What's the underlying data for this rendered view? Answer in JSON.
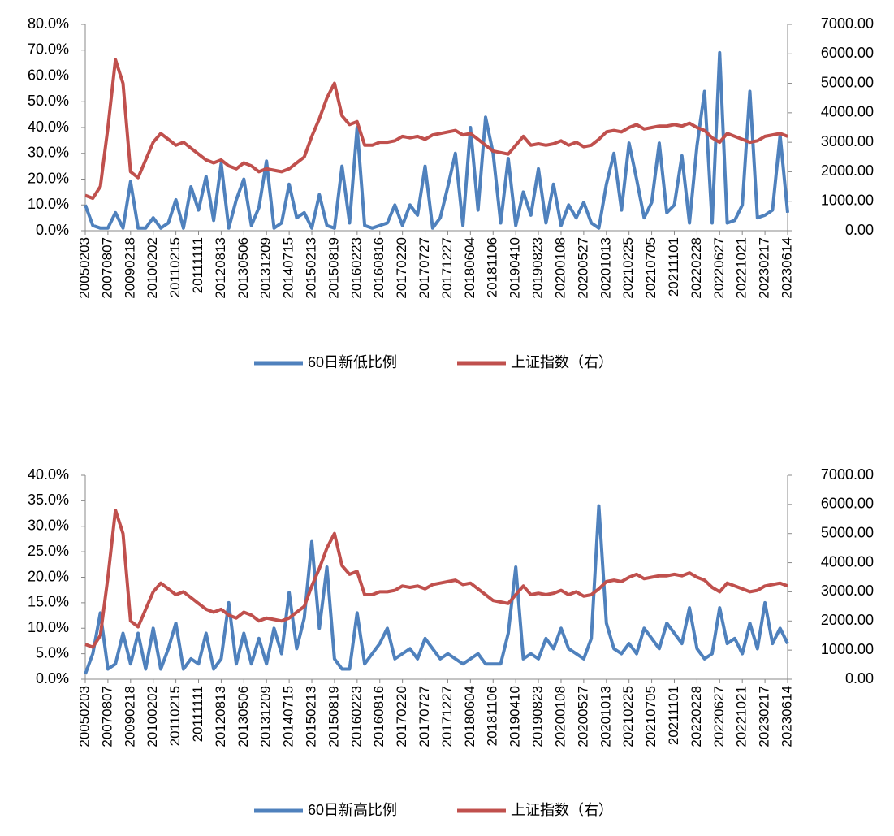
{
  "chart_data": [
    {
      "type": "line",
      "categories": [
        "20050203",
        null,
        null,
        "20070807",
        null,
        null,
        "20090218",
        null,
        null,
        "20100202",
        null,
        null,
        "20110215",
        null,
        null,
        "20111111",
        null,
        null,
        "20120813",
        null,
        null,
        "20130506",
        null,
        null,
        "20131209",
        null,
        null,
        "20140715",
        null,
        null,
        "20150213",
        null,
        null,
        "20150819",
        null,
        null,
        "20160223",
        null,
        null,
        "20160816",
        null,
        null,
        "20170220",
        null,
        null,
        "20170727",
        null,
        null,
        "20171227",
        null,
        null,
        "20180604",
        null,
        null,
        "20181106",
        null,
        null,
        "20190410",
        null,
        null,
        "20190823",
        null,
        null,
        "20200108",
        null,
        null,
        "20200527",
        null,
        null,
        "20201013",
        null,
        null,
        "20210225",
        null,
        null,
        "20210705",
        null,
        null,
        "20211101",
        null,
        null,
        "20220228",
        null,
        null,
        "20220627",
        null,
        null,
        "20221021",
        null,
        null,
        "20230217",
        null,
        null,
        "20230614"
      ],
      "series": [
        {
          "name": "60日新低比例",
          "color": "#4f81bd",
          "values": [
            10,
            2,
            1,
            1,
            7,
            1,
            19,
            1,
            1,
            5,
            1,
            3,
            12,
            1,
            17,
            8,
            21,
            4,
            26,
            1,
            12,
            20,
            2,
            9,
            27,
            1,
            3,
            18,
            5,
            7,
            1,
            14,
            2,
            1,
            25,
            3,
            40,
            2,
            1,
            2,
            3,
            10,
            2,
            10,
            6,
            25,
            1,
            5,
            17,
            30,
            2,
            40,
            8,
            44,
            30,
            3,
            28,
            2,
            15,
            6,
            24,
            3,
            18,
            2,
            10,
            5,
            11,
            3,
            1,
            18,
            30,
            8,
            34,
            20,
            5,
            11,
            34,
            7,
            10,
            29,
            3,
            33,
            54,
            3,
            69,
            3,
            4,
            10,
            54,
            5,
            6,
            8,
            37,
            7
          ]
        },
        {
          "name": "上证指数（右）",
          "color": "#c0504d",
          "axis": "y2",
          "values": [
            1200,
            1100,
            1500,
            3500,
            5800,
            5000,
            2000,
            1800,
            2400,
            3000,
            3300,
            3100,
            2900,
            3000,
            2800,
            2600,
            2400,
            2300,
            2400,
            2200,
            2100,
            2300,
            2200,
            2000,
            2100,
            2050,
            2000,
            2100,
            2300,
            2500,
            3200,
            3800,
            4500,
            5000,
            3900,
            3600,
            3700,
            2900,
            2900,
            3000,
            3000,
            3050,
            3200,
            3150,
            3200,
            3100,
            3250,
            3300,
            3350,
            3400,
            3250,
            3300,
            3100,
            2900,
            2700,
            2650,
            2600,
            2900,
            3200,
            2900,
            2950,
            2900,
            2950,
            3050,
            2900,
            3000,
            2850,
            2900,
            3100,
            3350,
            3400,
            3350,
            3500,
            3600,
            3450,
            3500,
            3550,
            3550,
            3600,
            3550,
            3650,
            3500,
            3400,
            3150,
            3000,
            3300,
            3200,
            3100,
            3000,
            3050,
            3200,
            3250,
            3300,
            3200
          ]
        }
      ],
      "ylim": [
        0,
        80
      ],
      "yticks": [
        {
          "value": 0,
          "label": "0.0%"
        },
        {
          "value": 10,
          "label": "10.0%"
        },
        {
          "value": 20,
          "label": "20.0%"
        },
        {
          "value": 30,
          "label": "30.0%"
        },
        {
          "value": 40,
          "label": "40.0%"
        },
        {
          "value": 50,
          "label": "50.0%"
        },
        {
          "value": 60,
          "label": "60.0%"
        },
        {
          "value": 70,
          "label": "70.0%"
        },
        {
          "value": 80,
          "label": "80.0%"
        }
      ],
      "y2lim": [
        0,
        7000
      ],
      "y2ticks": [
        {
          "value": 0,
          "label": "0.00"
        },
        {
          "value": 1000,
          "label": "1000.00"
        },
        {
          "value": 2000,
          "label": "2000.00"
        },
        {
          "value": 3000,
          "label": "3000.00"
        },
        {
          "value": 4000,
          "label": "4000.00"
        },
        {
          "value": 5000,
          "label": "5000.00"
        },
        {
          "value": 6000,
          "label": "6000.00"
        },
        {
          "value": 7000,
          "label": "7000.00"
        }
      ],
      "legend": "bottom"
    },
    {
      "type": "line",
      "categories": [
        "20050203",
        null,
        null,
        "20070807",
        null,
        null,
        "20090218",
        null,
        null,
        "20100202",
        null,
        null,
        "20110215",
        null,
        null,
        "20111111",
        null,
        null,
        "20120813",
        null,
        null,
        "20130506",
        null,
        null,
        "20131209",
        null,
        null,
        "20140715",
        null,
        null,
        "20150213",
        null,
        null,
        "20150819",
        null,
        null,
        "20160223",
        null,
        null,
        "20160816",
        null,
        null,
        "20170220",
        null,
        null,
        "20170727",
        null,
        null,
        "20171227",
        null,
        null,
        "20180604",
        null,
        null,
        "20181106",
        null,
        null,
        "20190410",
        null,
        null,
        "20190823",
        null,
        null,
        "20200108",
        null,
        null,
        "20200527",
        null,
        null,
        "20201013",
        null,
        null,
        "20210225",
        null,
        null,
        "20210705",
        null,
        null,
        "20211101",
        null,
        null,
        "20220228",
        null,
        null,
        "20220627",
        null,
        null,
        "20221021",
        null,
        null,
        "20230217",
        null,
        null,
        "20230614"
      ],
      "series": [
        {
          "name": "60日新高比例",
          "color": "#4f81bd",
          "values": [
            1,
            5,
            13,
            2,
            3,
            9,
            3,
            9,
            2,
            10,
            2,
            6,
            11,
            2,
            4,
            3,
            9,
            2,
            4,
            15,
            3,
            9,
            3,
            8,
            3,
            10,
            5,
            17,
            6,
            12,
            27,
            10,
            22,
            4,
            2,
            2,
            13,
            3,
            5,
            7,
            10,
            4,
            5,
            6,
            4,
            8,
            6,
            4,
            5,
            4,
            3,
            4,
            5,
            3,
            3,
            3,
            9,
            22,
            4,
            5,
            4,
            8,
            6,
            10,
            6,
            5,
            4,
            8,
            34,
            11,
            6,
            5,
            7,
            5,
            10,
            8,
            6,
            11,
            9,
            7,
            14,
            6,
            4,
            5,
            14,
            7,
            8,
            5,
            11,
            6,
            15,
            7,
            10,
            7
          ]
        },
        {
          "name": "上证指数（右）",
          "color": "#c0504d",
          "axis": "y2",
          "values": [
            1200,
            1100,
            1500,
            3500,
            5800,
            5000,
            2000,
            1800,
            2400,
            3000,
            3300,
            3100,
            2900,
            3000,
            2800,
            2600,
            2400,
            2300,
            2400,
            2200,
            2100,
            2300,
            2200,
            2000,
            2100,
            2050,
            2000,
            2100,
            2300,
            2500,
            3200,
            3800,
            4500,
            5000,
            3900,
            3600,
            3700,
            2900,
            2900,
            3000,
            3000,
            3050,
            3200,
            3150,
            3200,
            3100,
            3250,
            3300,
            3350,
            3400,
            3250,
            3300,
            3100,
            2900,
            2700,
            2650,
            2600,
            2900,
            3200,
            2900,
            2950,
            2900,
            2950,
            3050,
            2900,
            3000,
            2850,
            2900,
            3100,
            3350,
            3400,
            3350,
            3500,
            3600,
            3450,
            3500,
            3550,
            3550,
            3600,
            3550,
            3650,
            3500,
            3400,
            3150,
            3000,
            3300,
            3200,
            3100,
            3000,
            3050,
            3200,
            3250,
            3300,
            3200
          ]
        }
      ],
      "ylim": [
        0,
        40
      ],
      "yticks": [
        {
          "value": 0,
          "label": "0.0%"
        },
        {
          "value": 5,
          "label": "5.0%"
        },
        {
          "value": 10,
          "label": "10.0%"
        },
        {
          "value": 15,
          "label": "15.0%"
        },
        {
          "value": 20,
          "label": "20.0%"
        },
        {
          "value": 25,
          "label": "25.0%"
        },
        {
          "value": 30,
          "label": "30.0%"
        },
        {
          "value": 35,
          "label": "35.0%"
        },
        {
          "value": 40,
          "label": "40.0%"
        }
      ],
      "y2lim": [
        0,
        7000
      ],
      "y2ticks": [
        {
          "value": 0,
          "label": "0.00"
        },
        {
          "value": 1000,
          "label": "1000.00"
        },
        {
          "value": 2000,
          "label": "2000.00"
        },
        {
          "value": 3000,
          "label": "3000.00"
        },
        {
          "value": 4000,
          "label": "4000.00"
        },
        {
          "value": 5000,
          "label": "5000.00"
        },
        {
          "value": 6000,
          "label": "6000.00"
        },
        {
          "value": 7000,
          "label": "7000.00"
        }
      ],
      "legend": "bottom"
    }
  ]
}
